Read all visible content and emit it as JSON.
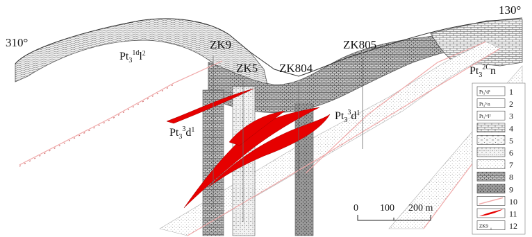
{
  "section": {
    "azimuth_left": "310°",
    "azimuth_right": "130°",
    "unit_labels": {
      "left_top": {
        "main": "Pt",
        "sub": "3",
        "sup": "1d",
        "tail": "l",
        "tail_sup": "2"
      },
      "right_top": {
        "main": "Pt",
        "sub": "3",
        "sup": "2C",
        "tail": "n"
      },
      "mid_left": {
        "main": "Pt",
        "sub": "3",
        "sup": "3",
        "tail": "d",
        "tail_sup": "1"
      },
      "mid_right": {
        "main": "Pt",
        "sub": "3",
        "sup": "3",
        "tail": "d",
        "tail_sup": "1"
      }
    },
    "boreholes": [
      "ZK9",
      "ZK5",
      "ZK804",
      "ZK805"
    ]
  },
  "scale_bar": {
    "ticks": [
      "0",
      "100",
      "200 m"
    ]
  },
  "legend": {
    "items": [
      {
        "num": "1",
        "swatch_text": "Pt₃³d¹",
        "pattern": "label"
      },
      {
        "num": "2",
        "swatch_text": "Pt₃²ᶜn",
        "pattern": "label"
      },
      {
        "num": "3",
        "swatch_text": "Pt₃¹ᵈl²",
        "pattern": "label"
      },
      {
        "num": "4",
        "pattern": "brick"
      },
      {
        "num": "5",
        "pattern": "dots-dash"
      },
      {
        "num": "6",
        "pattern": "sand"
      },
      {
        "num": "7",
        "pattern": "dots"
      },
      {
        "num": "8",
        "pattern": "dense"
      },
      {
        "num": "9",
        "pattern": "grey-dots"
      },
      {
        "num": "10",
        "pattern": "fault"
      },
      {
        "num": "11",
        "pattern": "orebody"
      },
      {
        "num": "12",
        "swatch_text": "ZK9",
        "pattern": "borehole"
      }
    ]
  },
  "colors": {
    "orebody": "#e60000",
    "fault": "#f0a8a8",
    "rock_line": "#555555",
    "grey_rock": "#8a8a8a"
  }
}
